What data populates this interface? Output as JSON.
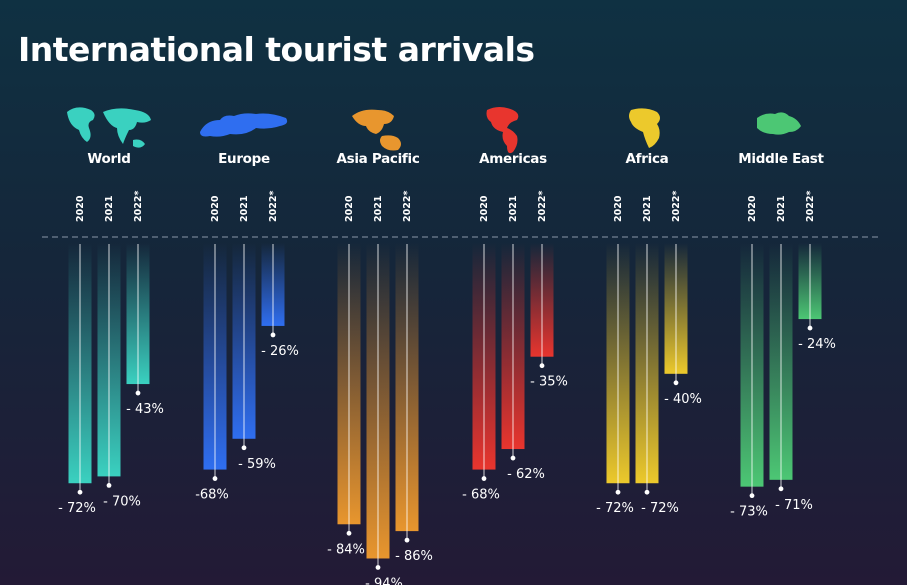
{
  "title": "International tourist arrivals",
  "chart_data": {
    "type": "bar",
    "title": "International tourist arrivals",
    "categories": [
      "2020",
      "2021",
      "2022*"
    ],
    "ylim": [
      -100,
      0
    ],
    "regions": [
      {
        "name": "World",
        "icon": "world-map-icon",
        "color": "#3ad1c0",
        "values": [
          -72,
          -70,
          -43
        ],
        "labels": [
          "- 72%",
          "- 70%",
          "- 43%"
        ]
      },
      {
        "name": "Europe",
        "icon": "europe-map-icon",
        "color": "#2f6ef0",
        "values": [
          -68,
          -59,
          -26
        ],
        "labels": [
          "-68%",
          "- 59%",
          "- 26%"
        ]
      },
      {
        "name": "Asia Pacific",
        "icon": "asia-pacific-map-icon",
        "color": "#e8962e",
        "values": [
          -84,
          -94,
          -86
        ],
        "labels": [
          "- 84%",
          "- 94%",
          "- 86%"
        ]
      },
      {
        "name": "Americas",
        "icon": "americas-map-icon",
        "color": "#e8352e",
        "values": [
          -68,
          -62,
          -35
        ],
        "labels": [
          "- 68%",
          "- 62%",
          "- 35%"
        ]
      },
      {
        "name": "Africa",
        "icon": "africa-map-icon",
        "color": "#ecc92c",
        "values": [
          -72,
          -72,
          -40
        ],
        "labels": [
          "- 72%",
          "- 72%",
          "- 40%"
        ]
      },
      {
        "name": "Middle East",
        "icon": "middle-east-map-icon",
        "color": "#4cc774",
        "values": [
          -73,
          -71,
          -24
        ],
        "labels": [
          "- 73%",
          "- 71%",
          "- 24%"
        ]
      }
    ]
  }
}
